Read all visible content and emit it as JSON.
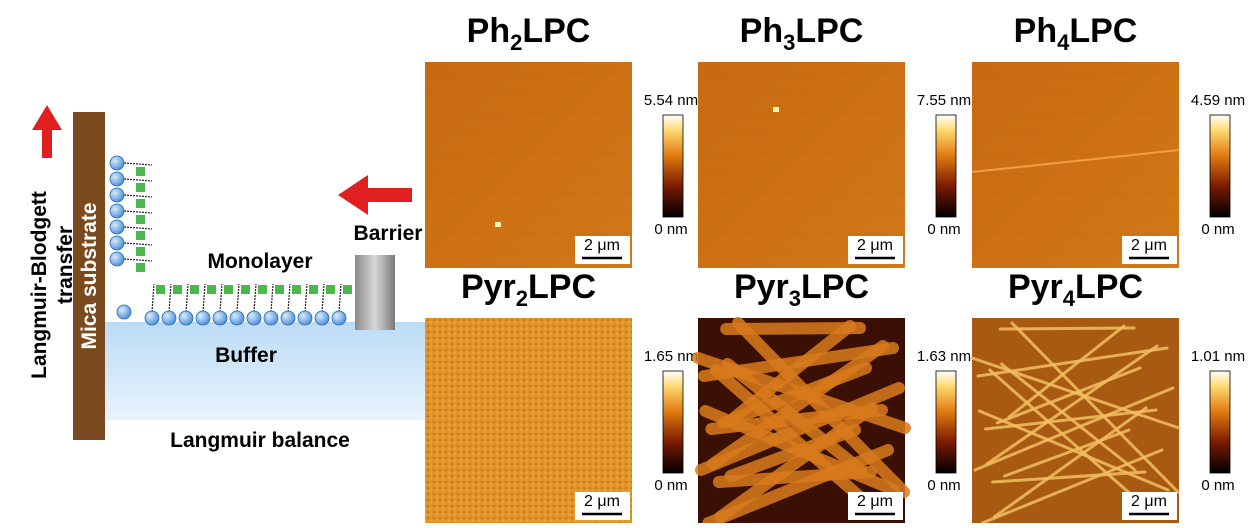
{
  "diagram": {
    "transfer_lines": [
      "Langmuir-Blodgett",
      "transfer"
    ],
    "substrate": "Mica substrate",
    "monolayer": "Monolayer",
    "barrier": "Barrier",
    "buffer": "Buffer",
    "balance": "Langmuir balance"
  },
  "panels": [
    {
      "title": {
        "prefix": "Ph",
        "sub": "2",
        "suffix": "LPC"
      },
      "scale_max": "5.54 nm",
      "scale_min": "0 nm",
      "scale_bar": "2 μm"
    },
    {
      "title": {
        "prefix": "Ph",
        "sub": "3",
        "suffix": "LPC"
      },
      "scale_max": "7.55 nm",
      "scale_min": "0 nm",
      "scale_bar": "2 μm"
    },
    {
      "title": {
        "prefix": "Ph",
        "sub": "4",
        "suffix": "LPC"
      },
      "scale_max": "4.59 nm",
      "scale_min": "0 nm",
      "scale_bar": "2 μm"
    },
    {
      "title": {
        "prefix": "Pyr",
        "sub": "2",
        "suffix": "LPC"
      },
      "scale_max": "1.65 nm",
      "scale_min": "0 nm",
      "scale_bar": "2 μm"
    },
    {
      "title": {
        "prefix": "Pyr",
        "sub": "3",
        "suffix": "LPC"
      },
      "scale_max": "1.63 nm",
      "scale_min": "0 nm",
      "scale_bar": "2 μm"
    },
    {
      "title": {
        "prefix": "Pyr",
        "sub": "4",
        "suffix": "LPC"
      },
      "scale_max": "1.01 nm",
      "scale_min": "0 nm",
      "scale_bar": "2 μm"
    }
  ]
}
